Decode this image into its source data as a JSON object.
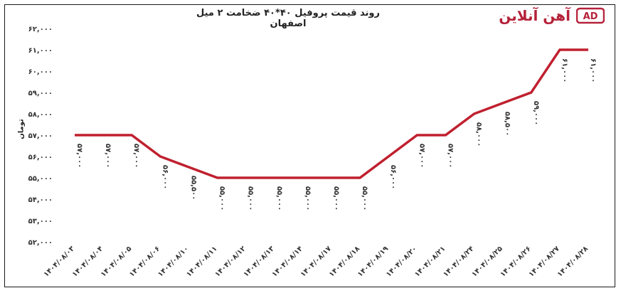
{
  "chart_data": {
    "type": "line",
    "title": "روند قیمت پروفیل ۴۰*۴۰ ضخامت ۲ میل اصفهان",
    "ylabel": "تومان",
    "xlabel": "",
    "ylim": [
      52000,
      62000
    ],
    "yticks": [
      "۵۲,۰۰۰",
      "۵۳,۰۰۰",
      "۵۴,۰۰۰",
      "۵۵,۰۰۰",
      "۵۶,۰۰۰",
      "۵۷,۰۰۰",
      "۵۸,۰۰۰",
      "۵۹,۰۰۰",
      "۶۰,۰۰۰",
      "۶۱,۰۰۰",
      "۶۲,۰۰۰"
    ],
    "yticks_values": [
      52000,
      53000,
      54000,
      55000,
      56000,
      57000,
      58000,
      59000,
      60000,
      61000,
      62000
    ],
    "categories": [
      "۱۴۰۴/۰۸/۰۳",
      "۱۴۰۴/۰۸/۰۴",
      "۱۴۰۴/۰۸/۰۵",
      "۱۴۰۴/۰۸/۰۶",
      "۱۴۰۴/۰۸/۱۰",
      "۱۴۰۴/۰۸/۱۱",
      "۱۴۰۴/۰۸/۱۲",
      "۱۴۰۴/۰۸/۱۳",
      "۱۴۰۴/۰۸/۱۴",
      "۱۴۰۴/۰۸/۱۷",
      "۱۴۰۴/۰۸/۱۸",
      "۱۴۰۴/۰۸/۱۹",
      "۱۴۰۴/۰۸/۲۰",
      "۱۴۰۴/۰۸/۲۱",
      "۱۴۰۴/۰۸/۲۴",
      "۱۴۰۴/۰۸/۲۵",
      "۱۴۰۴/۰۸/۲۶",
      "۱۴۰۴/۰۸/۲۷",
      "۱۴۰۴/۰۸/۲۸"
    ],
    "values": [
      57000,
      57000,
      57000,
      56000,
      55500,
      55000,
      55000,
      55000,
      55000,
      55000,
      55000,
      56000,
      57000,
      57000,
      58000,
      58500,
      59000,
      61000,
      61000
    ],
    "data_labels": [
      "۵۷,۰۰۰",
      "۵۷,۰۰۰",
      "۵۷,۰۰۰",
      "۵۶,۰۰۰",
      "۵۵,۵۰۰",
      "۵۵,۰۰۰",
      "۵۵,۰۰۰",
      "۵۵,۰۰۰",
      "۵۵,۰۰۰",
      "۵۵,۰۰۰",
      "۵۵,۰۰۰",
      "۵۶,۰۰۰",
      "۵۷,۰۰۰",
      "۵۷,۰۰۰",
      "۵۸,۰۰۰",
      "۵۸,۵۰۰",
      "۵۹,۰۰۰",
      "۶۱,۰۰۰",
      "۶۱,۰۰۰"
    ],
    "grid": false,
    "legend": "none",
    "line_color": "#c0202f"
  },
  "logo": {
    "text": "آهن آنلاین",
    "mark": "AD",
    "color": "#b5223a"
  }
}
